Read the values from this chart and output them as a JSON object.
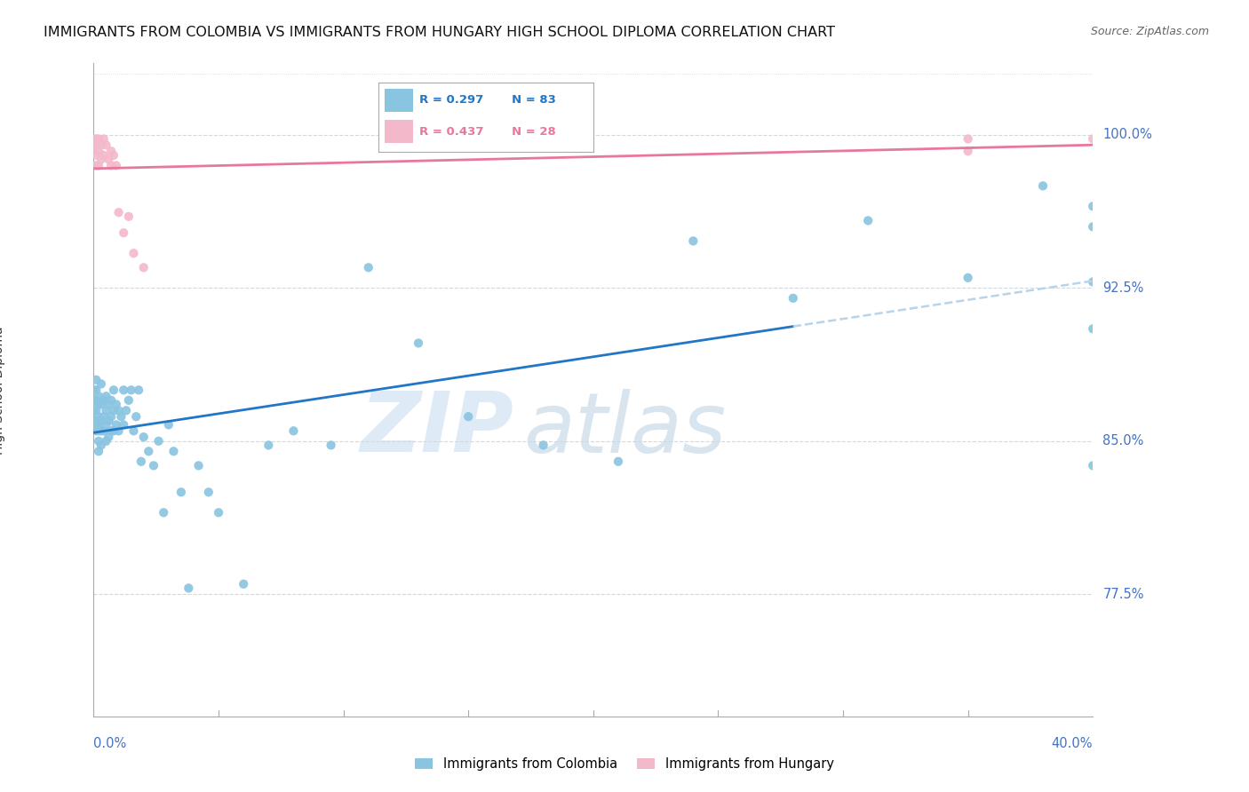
{
  "title": "IMMIGRANTS FROM COLOMBIA VS IMMIGRANTS FROM HUNGARY HIGH SCHOOL DIPLOMA CORRELATION CHART",
  "source": "Source: ZipAtlas.com",
  "ylabel": "High School Diploma",
  "ytick_labels": [
    "77.5%",
    "85.0%",
    "92.5%",
    "100.0%"
  ],
  "ytick_values": [
    0.775,
    0.85,
    0.925,
    1.0
  ],
  "xlim": [
    0.0,
    0.4
  ],
  "ylim": [
    0.715,
    1.035
  ],
  "colombia_color": "#89c4e1",
  "hungary_color": "#f4b8cb",
  "colombia_line_color": "#2176c7",
  "hungary_line_color": "#e8789a",
  "dash_color": "#b8d4ea",
  "colombia_R": 0.297,
  "colombia_N": 83,
  "hungary_R": 0.437,
  "hungary_N": 28,
  "colombia_x": [
    0.0,
    0.0,
    0.0,
    0.001,
    0.001,
    0.001,
    0.001,
    0.001,
    0.001,
    0.001,
    0.002,
    0.002,
    0.002,
    0.002,
    0.002,
    0.002,
    0.002,
    0.003,
    0.003,
    0.003,
    0.003,
    0.003,
    0.004,
    0.004,
    0.004,
    0.005,
    0.005,
    0.005,
    0.005,
    0.006,
    0.006,
    0.006,
    0.007,
    0.007,
    0.007,
    0.008,
    0.008,
    0.008,
    0.009,
    0.009,
    0.01,
    0.01,
    0.011,
    0.012,
    0.012,
    0.013,
    0.014,
    0.015,
    0.016,
    0.017,
    0.018,
    0.019,
    0.02,
    0.022,
    0.024,
    0.026,
    0.028,
    0.03,
    0.032,
    0.035,
    0.038,
    0.042,
    0.046,
    0.05,
    0.06,
    0.07,
    0.08,
    0.095,
    0.11,
    0.13,
    0.15,
    0.18,
    0.21,
    0.24,
    0.28,
    0.31,
    0.35,
    0.38,
    0.4,
    0.4,
    0.4,
    0.4,
    0.4
  ],
  "colombia_y": [
    0.875,
    0.87,
    0.865,
    0.88,
    0.875,
    0.87,
    0.865,
    0.86,
    0.858,
    0.855,
    0.872,
    0.868,
    0.862,
    0.858,
    0.855,
    0.85,
    0.845,
    0.878,
    0.868,
    0.86,
    0.855,
    0.848,
    0.87,
    0.862,
    0.855,
    0.872,
    0.865,
    0.858,
    0.85,
    0.868,
    0.86,
    0.852,
    0.87,
    0.862,
    0.855,
    0.875,
    0.865,
    0.855,
    0.868,
    0.858,
    0.865,
    0.855,
    0.862,
    0.875,
    0.858,
    0.865,
    0.87,
    0.875,
    0.855,
    0.862,
    0.875,
    0.84,
    0.852,
    0.845,
    0.838,
    0.85,
    0.815,
    0.858,
    0.845,
    0.825,
    0.778,
    0.838,
    0.825,
    0.815,
    0.78,
    0.848,
    0.855,
    0.848,
    0.935,
    0.898,
    0.862,
    0.848,
    0.84,
    0.948,
    0.92,
    0.958,
    0.93,
    0.975,
    0.928,
    0.905,
    0.838,
    0.965,
    0.955
  ],
  "hungary_x": [
    0.0,
    0.0,
    0.0,
    0.001,
    0.001,
    0.001,
    0.001,
    0.002,
    0.002,
    0.002,
    0.003,
    0.003,
    0.004,
    0.004,
    0.005,
    0.006,
    0.007,
    0.007,
    0.008,
    0.009,
    0.01,
    0.012,
    0.014,
    0.016,
    0.02,
    0.35,
    0.35,
    0.4
  ],
  "hungary_y": [
    0.998,
    0.995,
    0.992,
    0.998,
    0.995,
    0.99,
    0.985,
    0.998,
    0.992,
    0.985,
    0.995,
    0.988,
    0.998,
    0.99,
    0.995,
    0.988,
    0.992,
    0.985,
    0.99,
    0.985,
    0.962,
    0.952,
    0.96,
    0.942,
    0.935,
    0.998,
    0.992,
    0.998
  ],
  "watermark_zip": "ZIP",
  "watermark_atlas": "atlas",
  "background_color": "#ffffff",
  "grid_color": "#d0d8e0",
  "tick_color": "#4472c4",
  "title_fontsize": 11.5,
  "source_fontsize": 9,
  "axis_label_fontsize": 10,
  "tick_fontsize": 10.5
}
